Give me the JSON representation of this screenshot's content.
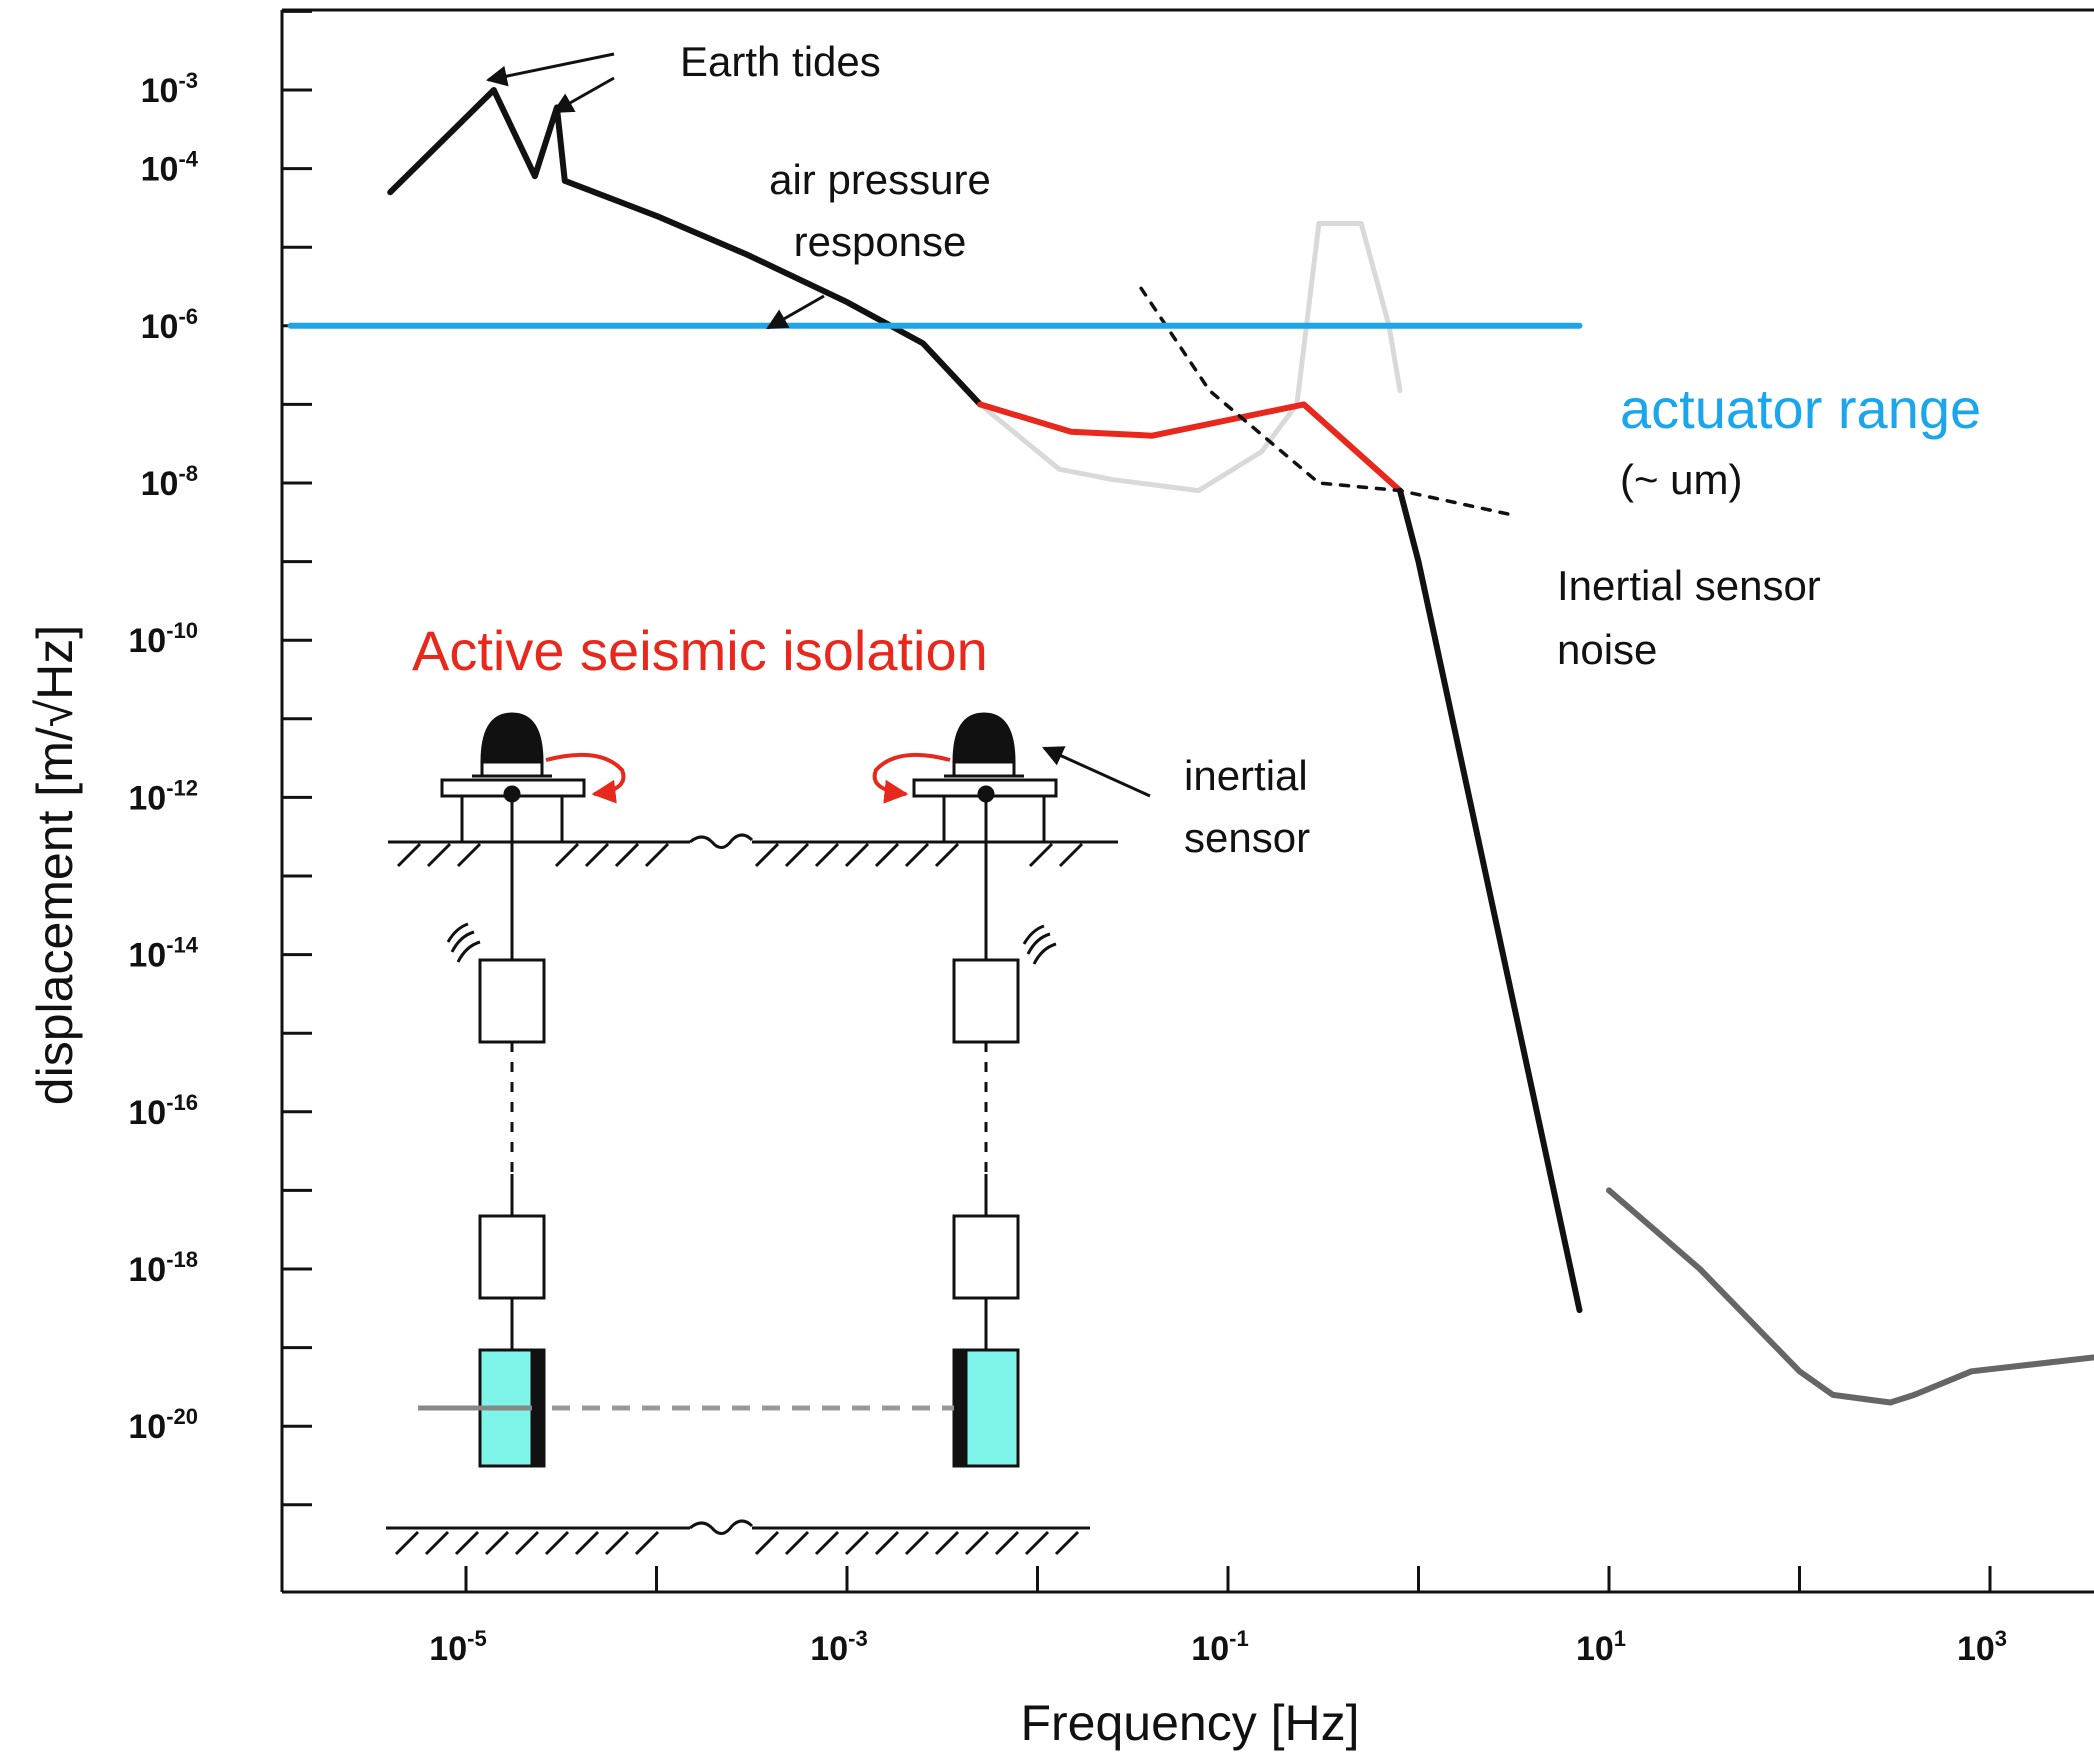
{
  "chart_data": {
    "type": "line",
    "xlabel": "Frequency [Hz]",
    "ylabel": "displacement [m/√Hz]",
    "x_scale": "log",
    "y_scale": "log",
    "xlim": [
      1e-06,
      10000.0
    ],
    "ylim": [
      1e-21,
      0.01
    ],
    "x_ticks": [
      {
        "value": 1e-05,
        "base": "10",
        "exp": "-5"
      },
      {
        "value": 0.001,
        "base": "10",
        "exp": "-3"
      },
      {
        "value": 0.1,
        "base": "10",
        "exp": "-1"
      },
      {
        "value": 10.0,
        "base": "10",
        "exp": "1"
      },
      {
        "value": 1000.0,
        "base": "10",
        "exp": "3"
      }
    ],
    "y_ticks": [
      {
        "value": 0.001,
        "base": "10",
        "exp": "-3"
      },
      {
        "value": 0.0001,
        "base": "10",
        "exp": "-4"
      },
      {
        "value": 1e-06,
        "base": "10",
        "exp": "-6"
      },
      {
        "value": 1e-08,
        "base": "10",
        "exp": "-8"
      },
      {
        "value": 1e-10,
        "base": "10",
        "exp": "-10"
      },
      {
        "value": 1e-12,
        "base": "10",
        "exp": "-12"
      },
      {
        "value": 1e-14,
        "base": "10",
        "exp": "-14"
      },
      {
        "value": 1e-16,
        "base": "10",
        "exp": "-16"
      },
      {
        "value": 1e-18,
        "base": "10",
        "exp": "-18"
      },
      {
        "value": 1e-20,
        "base": "10",
        "exp": "-20"
      }
    ],
    "series": [
      {
        "color": "#111111",
        "style": "solid",
        "x": [
          4e-06,
          1.4e-05,
          2.3e-05,
          3e-05,
          3.3e-05,
          0.0001,
          0.0003,
          0.001,
          0.0025,
          0.005
        ],
        "y": [
          5e-05,
          0.001,
          8e-05,
          0.0006,
          7e-05,
          2.5e-05,
          8e-06,
          2e-06,
          6e-07,
          1e-07
        ]
      },
      {
        "color": "#d9d9d9",
        "style": "solid",
        "x": [
          0.005,
          0.013,
          0.025,
          0.07,
          0.15,
          0.23,
          0.3,
          0.5,
          0.7,
          0.8
        ],
        "y": [
          1e-07,
          1.5e-08,
          1.1e-08,
          8e-09,
          2.5e-08,
          1e-07,
          2e-05,
          2e-05,
          1e-06,
          1.5e-07
        ]
      },
      {
        "color": "#e8281c",
        "style": "solid",
        "x": [
          0.005,
          0.015,
          0.04,
          0.25,
          0.8
        ],
        "y": [
          1e-07,
          4.5e-08,
          4e-08,
          1e-07,
          8e-09
        ]
      },
      {
        "color": "#111111",
        "style": "solid",
        "x": [
          0.8,
          1.0,
          7.0
        ],
        "y": [
          8e-09,
          1e-09,
          3e-19
        ]
      },
      {
        "color": "#111111",
        "style": "dashed",
        "x": [
          0.035,
          0.08,
          0.3,
          0.8,
          3.0
        ],
        "y": [
          3e-06,
          1.5e-07,
          1e-08,
          8e-09,
          4e-09
        ]
      },
      {
        "color": "#1ba6ec",
        "style": "solid",
        "x": [
          1.2e-06,
          7.0
        ],
        "y": [
          1e-06,
          1e-06
        ]
      },
      {
        "color": "#666666",
        "style": "solid",
        "x": [
          10.0,
          30.0,
          100.0,
          150.0,
          300.0,
          400.0,
          800.0,
          10000.0
        ],
        "y": [
          1e-17,
          1e-18,
          5e-20,
          2.5e-20,
          2e-20,
          2.5e-20,
          5e-20,
          1e-19
        ]
      }
    ],
    "annotations": {
      "earth_tides": "Earth tides",
      "air_pressure_1": "air pressure",
      "air_pressure_2": "response",
      "actuator_range": "actuator range",
      "actuator_unit": "(~ um)",
      "inertial_noise_1": "Inertial sensor",
      "inertial_noise_2": "noise",
      "active_isolation": "Active seismic isolation",
      "inertial_sensor_1": "inertial",
      "inertial_sensor_2": "sensor"
    }
  },
  "colors": {
    "black": "#111111",
    "red": "#e8281c",
    "blue": "#1ba6ec",
    "light_gray": "#d9d9d9",
    "gray": "#666666",
    "mass_cyan": "#7ff5ea"
  }
}
